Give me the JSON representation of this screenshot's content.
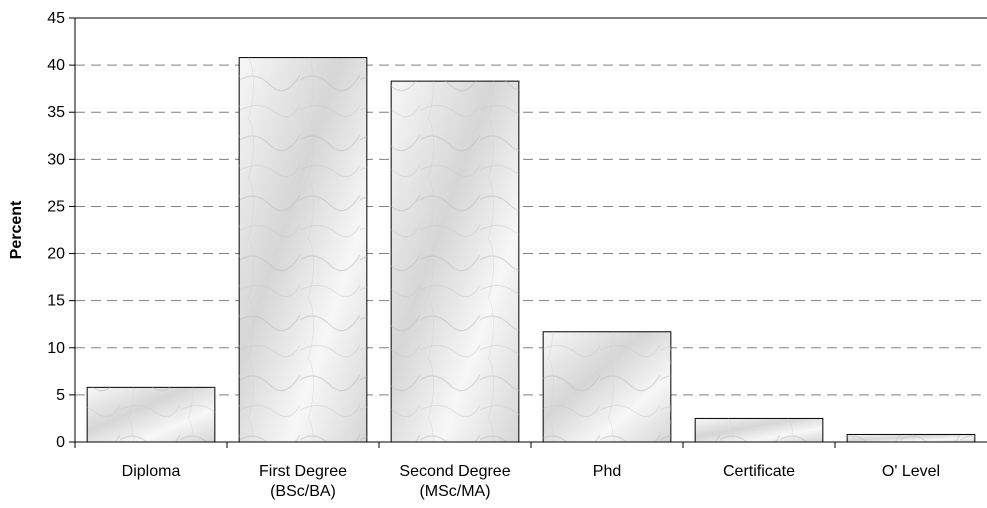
{
  "chart_data": {
    "type": "bar",
    "categories": [
      [
        "Diploma"
      ],
      [
        "First Degree",
        "(BSc/BA)"
      ],
      [
        "Second Degree",
        "(MSc/MA)"
      ],
      [
        "Phd"
      ],
      [
        "Certificate"
      ],
      [
        "O' Level"
      ]
    ],
    "values": [
      5.8,
      40.8,
      38.3,
      11.7,
      2.5,
      0.8
    ],
    "title": "",
    "xlabel": "",
    "ylabel": "Percent",
    "ylim": [
      0,
      45
    ],
    "yticks": [
      0,
      5,
      10,
      15,
      20,
      25,
      30,
      35,
      40,
      45
    ],
    "grid": true,
    "grid_style": "dashed",
    "legend": "none",
    "colors": {
      "bar_fill_light": "#f7f7f7",
      "bar_fill_dark": "#d6d6d6",
      "bar_stroke": "#000000",
      "grid": "#808080",
      "axis": "#000000"
    }
  }
}
